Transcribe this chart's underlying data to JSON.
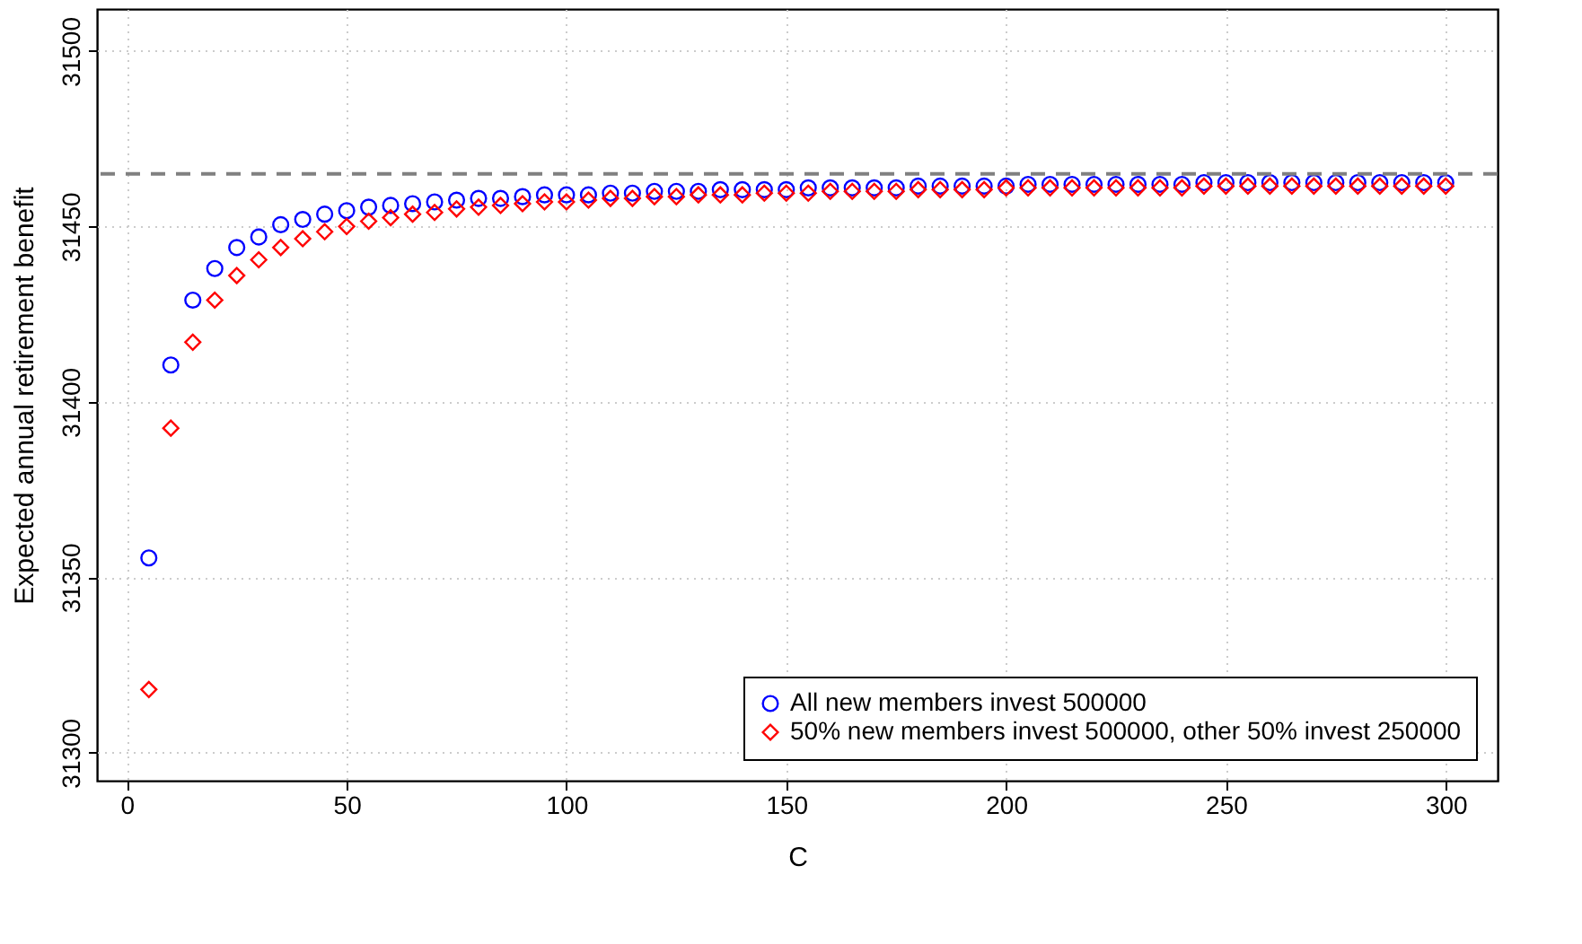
{
  "chart_data": {
    "type": "scatter",
    "xlabel": "C",
    "ylabel": "Expected annual retirement benefit",
    "x": [
      5,
      10,
      15,
      20,
      25,
      30,
      35,
      40,
      45,
      50,
      55,
      60,
      65,
      70,
      75,
      80,
      85,
      90,
      95,
      100,
      105,
      110,
      115,
      120,
      125,
      130,
      135,
      140,
      145,
      150,
      155,
      160,
      165,
      170,
      175,
      180,
      185,
      190,
      195,
      200,
      205,
      210,
      215,
      220,
      225,
      230,
      235,
      240,
      245,
      250,
      255,
      260,
      265,
      270,
      275,
      280,
      285,
      290,
      295,
      300
    ],
    "series": [
      {
        "name": "All new members invest 500000",
        "color": "#0000ff",
        "marker": "circle",
        "values": [
          31355.5,
          31410.5,
          31429,
          31438,
          31444,
          31447,
          31450.5,
          31452,
          31453.5,
          31454.5,
          31455.5,
          31456,
          31456.5,
          31457,
          31457.5,
          31458,
          31458,
          31458.5,
          31459,
          31459,
          31459,
          31459.5,
          31459.5,
          31460,
          31460,
          31460,
          31460.5,
          31460.5,
          31460.5,
          31460.5,
          31461,
          31461,
          31461,
          31461,
          31461,
          31461.5,
          31461.5,
          31461.5,
          31461.5,
          31461.5,
          31462,
          31462,
          31462,
          31462,
          31462,
          31462,
          31462,
          31462,
          31462.5,
          31462.5,
          31462.5,
          31462.5,
          31462.5,
          31462.5,
          31462.5,
          31462.5,
          31462.5,
          31462.5,
          31462.5,
          31462.5
        ]
      },
      {
        "name": "50% new members invest 500000, other 50% invest 250000",
        "color": "#ff0000",
        "marker": "diamond",
        "values": [
          31318,
          31392.5,
          31417,
          31429,
          31436,
          31440.5,
          31444,
          31446.5,
          31448.5,
          31450,
          31451.5,
          31452.5,
          31453.5,
          31454,
          31455,
          31455.5,
          31456,
          31456.5,
          31457,
          31457,
          31457.5,
          31458,
          31458,
          31458.5,
          31458.5,
          31459,
          31459,
          31459,
          31459.5,
          31459.5,
          31459.5,
          31460,
          31460,
          31460,
          31460,
          31460.5,
          31460.5,
          31460.5,
          31460.5,
          31461,
          31461,
          31461,
          31461,
          31461,
          31461,
          31461,
          31461,
          31461,
          31461.5,
          31461.5,
          31461.5,
          31461.5,
          31461.5,
          31461.5,
          31461.5,
          31461.5,
          31461.5,
          31461.5,
          31461.5,
          31461.5
        ]
      }
    ],
    "xlim": [
      -6.8,
      311.8
    ],
    "ylim": [
      31292,
      31512
    ],
    "xticks": [
      0,
      50,
      100,
      150,
      200,
      250,
      300
    ],
    "yticks": [
      31300,
      31350,
      31400,
      31450,
      31500
    ],
    "ref_lines": [
      {
        "axis": "y",
        "value": 31465,
        "color": "#808080",
        "line_style": "dashed"
      }
    ],
    "grid": true,
    "legend": "bottom right"
  }
}
